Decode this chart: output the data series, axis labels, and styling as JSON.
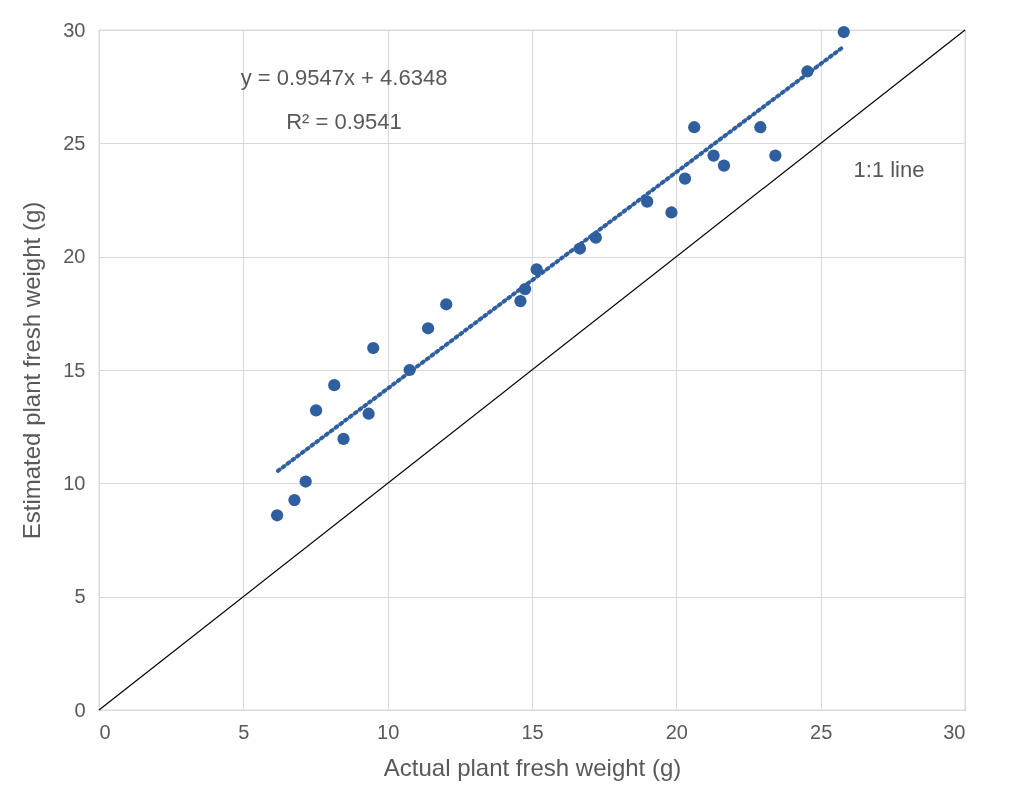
{
  "chart_data": {
    "type": "scatter",
    "xlabel": "Actual plant fresh weight (g)",
    "ylabel": "Estimated plant fresh weight (g)",
    "xlim": [
      0,
      30
    ],
    "ylim": [
      0,
      30
    ],
    "xticks": [
      0,
      5,
      10,
      15,
      20,
      25,
      30
    ],
    "yticks": [
      0,
      5,
      10,
      15,
      20,
      25,
      30
    ],
    "grid": true,
    "series": [
      {
        "color": "#2f5f9e",
        "marker": "circle",
        "x": [
          6.17,
          6.77,
          7.16,
          7.52,
          8.15,
          8.47,
          9.34,
          9.5,
          10.76,
          11.4,
          12.03,
          14.6,
          14.76,
          15.16,
          16.66,
          17.21,
          18.99,
          19.83,
          20.3,
          20.62,
          21.29,
          21.65,
          22.91,
          23.43,
          24.54,
          25.8
        ],
        "values": [
          8.59,
          9.26,
          10.08,
          13.22,
          14.33,
          11.96,
          13.07,
          15.97,
          15.0,
          16.84,
          17.9,
          18.04,
          18.57,
          19.44,
          20.36,
          20.84,
          22.43,
          21.95,
          23.44,
          25.71,
          24.46,
          24.02,
          25.71,
          24.46,
          28.17,
          29.91
        ]
      },
      {
        "type": "line",
        "color": "#2f5f9e",
        "line_style": "dotted",
        "marker": "none",
        "x": [
          6.2,
          25.8
        ],
        "values": [
          10.55,
          29.27
        ]
      },
      {
        "type": "line",
        "color": "#000000",
        "line_style": "solid",
        "marker": "none",
        "x": [
          0,
          30
        ],
        "values": [
          0,
          30
        ]
      }
    ],
    "annotations": [
      "y = 0.9547x + 4.6348",
      "R² = 0.9541",
      "1:1 line"
    ]
  }
}
